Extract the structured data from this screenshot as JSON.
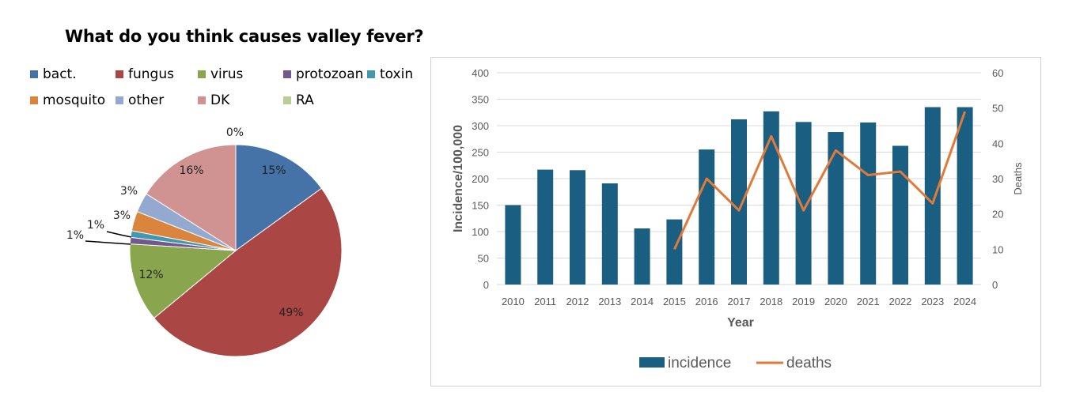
{
  "chart_data": [
    {
      "type": "pie",
      "title": "What do you think causes valley fever?",
      "categories": [
        "bact.",
        "fungus",
        "virus",
        "protozoan",
        "toxin",
        "mosquito",
        "other",
        "DK",
        "RA"
      ],
      "values": [
        15,
        49,
        12,
        1,
        1,
        3,
        3,
        16,
        0
      ],
      "labels": [
        "15%",
        "49%",
        "12%",
        "1%",
        "1%",
        "3%",
        "3%",
        "16%",
        "0%"
      ],
      "colors": [
        "#4572a7",
        "#aa4643",
        "#89a54e",
        "#71588f",
        "#4198af",
        "#db843d",
        "#93a9cf",
        "#d19392",
        "#b9cd96"
      ],
      "legend_placement": "top"
    },
    {
      "type": "bar+line",
      "categories": [
        "2010",
        "2011",
        "2012",
        "2013",
        "2014",
        "2015",
        "2016",
        "2017",
        "2018",
        "2019",
        "2020",
        "2021",
        "2022",
        "2023",
        "2024"
      ],
      "series": [
        {
          "name": "incidence",
          "type": "bar",
          "axis": "left",
          "color": "#1a5f82",
          "values": [
            150,
            217,
            216,
            191,
            106,
            123,
            255,
            312,
            327,
            307,
            288,
            306,
            262,
            335,
            335
          ]
        },
        {
          "name": "deaths",
          "type": "line",
          "axis": "right",
          "color": "#e07a3a",
          "values": [
            null,
            null,
            null,
            null,
            null,
            10,
            30,
            21,
            42,
            21,
            38,
            31,
            32,
            23,
            49
          ]
        }
      ],
      "xlabel": "Year",
      "ylabel": "Incidence/100,000",
      "y2label": "Deaths",
      "ylim": [
        0,
        400
      ],
      "yticks": [
        "0",
        "50",
        "100",
        "150",
        "200",
        "250",
        "300",
        "350",
        "400"
      ],
      "y2lim": [
        0,
        60
      ],
      "y2ticks": [
        "0",
        "10",
        "20",
        "30",
        "40",
        "50",
        "60"
      ],
      "grid": true,
      "legend_placement": "bottom"
    }
  ]
}
